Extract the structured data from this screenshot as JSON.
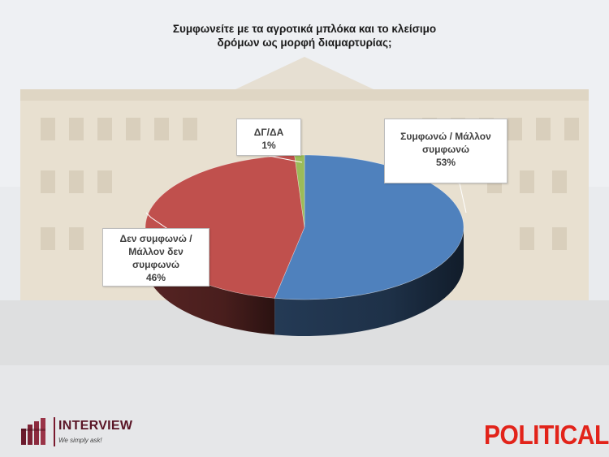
{
  "title_lines": [
    "Συμφωνείτε με τα αγροτικά μπλόκα και το κλείσιμο",
    "δρόμων ως μορφή διαμαρτυρίας;"
  ],
  "chart_data": {
    "type": "pie",
    "title": "Συμφωνείτε με τα αγροτικά μπλόκα και το κλείσιμο δρόμων ως μορφή διαμαρτυρίας;",
    "slices": [
      {
        "label": "Συμφωνώ / Μάλλον συμφωνώ",
        "value": 53,
        "color": "#4f81bd"
      },
      {
        "label": "Δεν συμφωνώ / Μάλλον δεν συμφωνώ",
        "value": 46,
        "color": "#c0504d"
      },
      {
        "label": "ΔΓ/ΔΑ",
        "value": 1,
        "color": "#9bbb59"
      }
    ],
    "callouts": {
      "dk": {
        "lines": [
          "ΔΓ/ΔΑ",
          "1%"
        ]
      },
      "agree": {
        "lines": [
          "Συμφωνώ / Μάλλον",
          "συμφωνώ",
          "53%"
        ]
      },
      "disagree": {
        "lines": [
          "Δεν συμφωνώ /",
          "Μάλλον δεν",
          "συμφωνώ",
          "46%"
        ]
      }
    },
    "style": "3d-pie"
  },
  "footer": {
    "interview_name": "INTERVIEW",
    "interview_tagline": "We simply ask!",
    "political_name": "POLITICAL"
  }
}
